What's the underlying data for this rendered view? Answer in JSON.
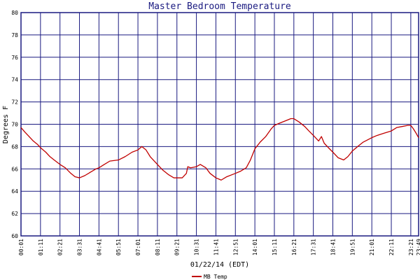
{
  "chart_data": {
    "type": "line",
    "title": "Master Bedroom Temperature",
    "xlabel": "01/22/14 (EDT)",
    "ylabel": "Degrees F",
    "ylim": [
      60,
      80
    ],
    "y_ticks": [
      "60",
      "62",
      "64",
      "66",
      "68",
      "70",
      "72",
      "74",
      "76",
      "78",
      "80"
    ],
    "x_ticks": [
      "00:01",
      "01:11",
      "02:21",
      "03:31",
      "04:41",
      "05:51",
      "07:01",
      "08:11",
      "09:21",
      "10:31",
      "11:41",
      "12:51",
      "14:01",
      "15:11",
      "16:21",
      "17:31",
      "18:41",
      "19:51",
      "21:01",
      "22:11",
      "23:21",
      "23:49"
    ],
    "grid": true,
    "legend_position": "bottom-center",
    "colors": {
      "grid": "#1a1a80",
      "frame": "#1a1a80",
      "series": "#c00000",
      "title": "#1a1a80"
    },
    "series": [
      {
        "name": "MB Temp",
        "points": [
          [
            "00:01",
            69.7
          ],
          [
            "00:15",
            69.3
          ],
          [
            "00:30",
            68.9
          ],
          [
            "00:45",
            68.5
          ],
          [
            "01:00",
            68.2
          ],
          [
            "01:11",
            67.9
          ],
          [
            "01:30",
            67.5
          ],
          [
            "01:45",
            67.1
          ],
          [
            "02:00",
            66.8
          ],
          [
            "02:21",
            66.4
          ],
          [
            "02:40",
            66.1
          ],
          [
            "03:00",
            65.6
          ],
          [
            "03:15",
            65.3
          ],
          [
            "03:31",
            65.2
          ],
          [
            "03:50",
            65.4
          ],
          [
            "04:10",
            65.7
          ],
          [
            "04:30",
            66.0
          ],
          [
            "04:41",
            66.1
          ],
          [
            "05:00",
            66.4
          ],
          [
            "05:20",
            66.7
          ],
          [
            "05:51",
            66.8
          ],
          [
            "06:15",
            67.1
          ],
          [
            "06:40",
            67.5
          ],
          [
            "07:01",
            67.7
          ],
          [
            "07:15",
            68.0
          ],
          [
            "07:30",
            67.7
          ],
          [
            "07:45",
            67.1
          ],
          [
            "08:11",
            66.4
          ],
          [
            "08:30",
            65.9
          ],
          [
            "08:50",
            65.5
          ],
          [
            "09:10",
            65.2
          ],
          [
            "09:21",
            65.2
          ],
          [
            "09:40",
            65.2
          ],
          [
            "09:55",
            65.6
          ],
          [
            "10:00",
            66.2
          ],
          [
            "10:10",
            66.1
          ],
          [
            "10:31",
            66.2
          ],
          [
            "10:45",
            66.4
          ],
          [
            "11:05",
            66.1
          ],
          [
            "11:20",
            65.6
          ],
          [
            "11:41",
            65.2
          ],
          [
            "12:00",
            65.0
          ],
          [
            "12:20",
            65.3
          ],
          [
            "12:51",
            65.6
          ],
          [
            "13:10",
            65.8
          ],
          [
            "13:30",
            66.1
          ],
          [
            "13:45",
            66.8
          ],
          [
            "14:01",
            67.8
          ],
          [
            "14:20",
            68.4
          ],
          [
            "14:40",
            68.9
          ],
          [
            "15:00",
            69.6
          ],
          [
            "15:11",
            69.9
          ],
          [
            "15:30",
            70.1
          ],
          [
            "15:50",
            70.3
          ],
          [
            "16:10",
            70.5
          ],
          [
            "16:21",
            70.5
          ],
          [
            "16:40",
            70.2
          ],
          [
            "17:00",
            69.8
          ],
          [
            "17:15",
            69.4
          ],
          [
            "17:31",
            69.0
          ],
          [
            "17:50",
            68.5
          ],
          [
            "18:00",
            68.9
          ],
          [
            "18:10",
            68.3
          ],
          [
            "18:25",
            67.9
          ],
          [
            "18:41",
            67.5
          ],
          [
            "19:00",
            67.0
          ],
          [
            "19:20",
            66.8
          ],
          [
            "19:35",
            67.1
          ],
          [
            "19:51",
            67.6
          ],
          [
            "20:10",
            68.0
          ],
          [
            "20:30",
            68.4
          ],
          [
            "21:01",
            68.8
          ],
          [
            "21:20",
            69.0
          ],
          [
            "21:45",
            69.2
          ],
          [
            "22:11",
            69.4
          ],
          [
            "22:30",
            69.7
          ],
          [
            "22:50",
            69.8
          ],
          [
            "23:10",
            69.9
          ],
          [
            "23:21",
            69.9
          ],
          [
            "23:30",
            69.6
          ],
          [
            "23:40",
            69.2
          ],
          [
            "23:49",
            68.8
          ]
        ]
      }
    ]
  }
}
